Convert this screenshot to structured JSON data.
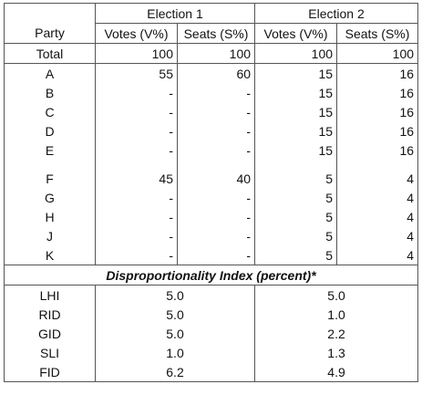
{
  "header": {
    "party": "Party",
    "election1": "Election 1",
    "election2": "Election 2",
    "votes": "Votes (V%)",
    "seats": "Seats (S%)"
  },
  "rows_group1": [
    {
      "party": "Total",
      "v1": "100",
      "s1": "100",
      "v2": "100",
      "s2": "100"
    },
    {
      "party": "A",
      "v1": "55",
      "s1": "60",
      "v2": "15",
      "s2": "16"
    },
    {
      "party": "B",
      "v1": "-",
      "s1": "-",
      "v2": "15",
      "s2": "16"
    },
    {
      "party": "C",
      "v1": "-",
      "s1": "-",
      "v2": "15",
      "s2": "16"
    },
    {
      "party": "D",
      "v1": "-",
      "s1": "-",
      "v2": "15",
      "s2": "16"
    },
    {
      "party": "E",
      "v1": "-",
      "s1": "-",
      "v2": "15",
      "s2": "16"
    }
  ],
  "rows_group2": [
    {
      "party": "F",
      "v1": "45",
      "s1": "40",
      "v2": "5",
      "s2": "4"
    },
    {
      "party": "G",
      "v1": "-",
      "s1": "-",
      "v2": "5",
      "s2": "4"
    },
    {
      "party": "H",
      "v1": "-",
      "s1": "-",
      "v2": "5",
      "s2": "4"
    },
    {
      "party": "J",
      "v1": "-",
      "s1": "-",
      "v2": "5",
      "s2": "4"
    },
    {
      "party": "K",
      "v1": "-",
      "s1": "-",
      "v2": "5",
      "s2": "4"
    }
  ],
  "index_title": "Disproportionality Index (percent)*",
  "index_rows": [
    {
      "name": "LHI",
      "e1": "5.0",
      "e2": "5.0"
    },
    {
      "name": "RID",
      "e1": "5.0",
      "e2": "1.0"
    },
    {
      "name": "GID",
      "e1": "5.0",
      "e2": "2.2"
    },
    {
      "name": "SLI",
      "e1": "1.0",
      "e2": "1.3"
    },
    {
      "name": "FID",
      "e1": "6.2",
      "e2": "4.9"
    }
  ]
}
